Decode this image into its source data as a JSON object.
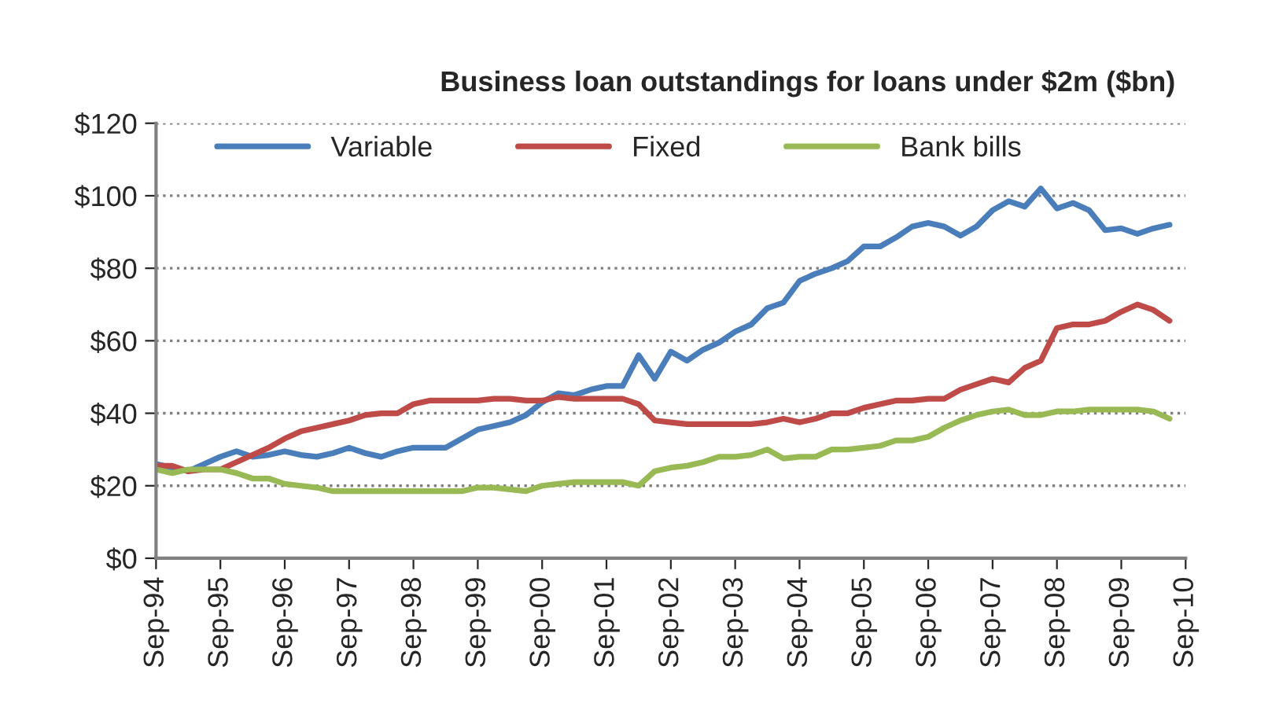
{
  "chart_data": {
    "type": "line",
    "title": "Business loan outstandings for loans under $2m ($bn)",
    "categories": [
      "Sep-94",
      null,
      null,
      null,
      "Sep-95",
      null,
      null,
      null,
      "Sep-96",
      null,
      null,
      null,
      "Sep-97",
      null,
      null,
      null,
      "Sep-98",
      null,
      null,
      null,
      "Sep-99",
      null,
      null,
      null,
      "Sep-00",
      null,
      null,
      null,
      "Sep-01",
      null,
      null,
      null,
      "Sep-02",
      null,
      null,
      null,
      "Sep-03",
      null,
      null,
      null,
      "Sep-04",
      null,
      null,
      null,
      "Sep-05",
      null,
      null,
      null,
      "Sep-06",
      null,
      null,
      null,
      "Sep-07",
      null,
      null,
      null,
      "Sep-08",
      null,
      null,
      null,
      "Sep-09",
      null,
      null,
      null,
      "Sep-10"
    ],
    "series": [
      {
        "name": "Variable",
        "color": "#4a7ebb",
        "values": [
          26,
          25,
          24,
          26,
          28,
          29.5,
          28,
          28.5,
          29.5,
          28.5,
          28,
          29,
          30.5,
          29,
          28,
          29.5,
          30.5,
          30.5,
          30.5,
          33,
          35.5,
          36.5,
          37.5,
          39.5,
          43,
          45.5,
          45,
          46.5,
          47.5,
          47.5,
          56,
          49.5,
          57,
          54.5,
          57.5,
          59.5,
          62.5,
          64.5,
          69,
          70.5,
          76.5,
          78.5,
          80,
          82,
          86,
          86,
          88.5,
          91.5,
          92.5,
          91.5,
          89,
          91.5,
          96,
          98.5,
          97,
          102,
          96.5,
          98,
          96,
          90.5,
          91,
          89.5,
          91,
          92,
          null
        ]
      },
      {
        "name": "Fixed",
        "color": "#be4b48",
        "values": [
          25.5,
          25.5,
          24,
          24.5,
          24.5,
          26.5,
          28.5,
          30.5,
          33,
          35,
          36,
          37,
          38,
          39.5,
          40,
          40,
          42.5,
          43.5,
          43.5,
          43.5,
          43.5,
          44,
          44,
          43.5,
          43.5,
          44.5,
          44,
          44,
          44,
          44,
          42.5,
          38,
          37.5,
          37,
          37,
          37,
          37,
          37,
          37.5,
          38.5,
          37.5,
          38.5,
          40,
          40,
          41.5,
          42.5,
          43.5,
          43.5,
          44,
          44,
          46.5,
          48,
          49.5,
          48.5,
          52.5,
          54.5,
          63.5,
          64.5,
          64.5,
          65.5,
          68,
          70,
          68.5,
          65.5,
          null
        ]
      },
      {
        "name": "Bank bills",
        "color": "#98b954",
        "values": [
          24.5,
          23.5,
          24.5,
          24.5,
          24.5,
          23.5,
          22,
          22,
          20.5,
          20,
          19.5,
          18.5,
          18.5,
          18.5,
          18.5,
          18.5,
          18.5,
          18.5,
          18.5,
          18.5,
          19.5,
          19.5,
          19,
          18.5,
          20,
          20.5,
          21,
          21,
          21,
          21,
          20,
          24,
          25,
          25.5,
          26.5,
          28,
          28,
          28.5,
          30,
          27.5,
          28,
          28,
          30,
          30,
          30.5,
          31,
          32.5,
          32.5,
          33.5,
          36,
          38,
          39.5,
          40.5,
          41,
          39.5,
          39.5,
          40.5,
          40.5,
          41,
          41,
          41,
          41,
          40.5,
          38.5,
          null
        ]
      }
    ],
    "ylim": [
      0,
      120
    ],
    "yticks": [
      {
        "value": 0,
        "label": "$0"
      },
      {
        "value": 20,
        "label": "$20"
      },
      {
        "value": 40,
        "label": "$40"
      },
      {
        "value": 60,
        "label": "$60"
      },
      {
        "value": 80,
        "label": "$80"
      },
      {
        "value": 100,
        "label": "$100"
      },
      {
        "value": 120,
        "label": "$120"
      }
    ],
    "grid": "y",
    "legend": "top",
    "marker": "none",
    "line_style": "solid"
  }
}
